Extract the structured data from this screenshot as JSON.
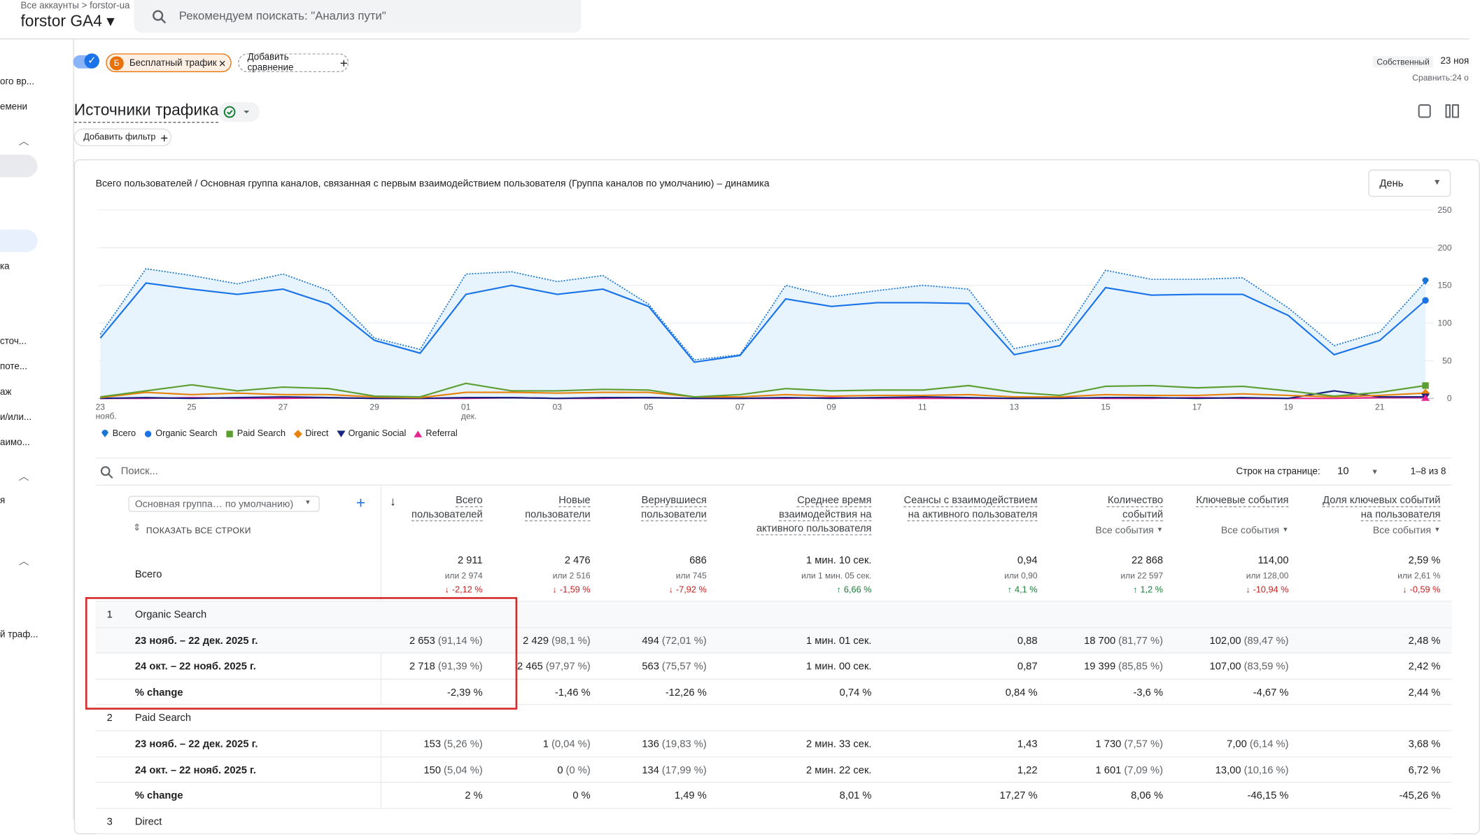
{
  "header": {
    "breadcrumb": [
      "Все аккаунты",
      "forstor-ua"
    ],
    "property": "forstor GA4",
    "search_placeholder": "Рекомендуем поискать: \"Анализ пути\""
  },
  "nav": {
    "items": [
      "ого вр...",
      "емени",
      "ка",
      "сточ...",
      "поте...",
      "аж",
      "и/или...",
      "аимо...",
      "я",
      "й траф..."
    ]
  },
  "toolbar": {
    "chip_letter": "Б",
    "chip": "Бесплатный трафик",
    "add_comparison": "Добавить сравнение",
    "date_label": "Собственный",
    "date": "23 ноя",
    "compare": "Сравнить:24 о"
  },
  "report": {
    "title": "Источники трафика",
    "add_filter": "Добавить фильтр",
    "granularity": "День"
  },
  "chart_data": {
    "type": "line",
    "title": "Всего пользователей / Основная группа каналов, связанная с первым взаимодействием пользователя (Группа каналов по умолчанию) – динамика",
    "categories": [
      "23\nнояб.",
      null,
      "25",
      null,
      "27",
      null,
      "29",
      null,
      "01\nдек.",
      null,
      "03",
      null,
      "05",
      null,
      "07",
      null,
      "09",
      null,
      "11",
      null,
      "13",
      null,
      "15",
      null,
      "17",
      null,
      "19",
      null,
      "21",
      null
    ],
    "ylim": [
      0,
      250
    ],
    "yticks": [
      0,
      50,
      100,
      150,
      200,
      250
    ],
    "grid": true,
    "series": [
      {
        "name": "Всего",
        "color": "#1976d2",
        "line_style": "dotted",
        "area": true,
        "marker": "pin",
        "values": [
          85,
          172,
          163,
          152,
          165,
          143,
          80,
          65,
          165,
          168,
          155,
          163,
          125,
          51,
          58,
          150,
          135,
          143,
          150,
          145,
          66,
          78,
          170,
          158,
          158,
          160,
          120,
          70,
          88,
          155
        ]
      },
      {
        "name": "Organic Search",
        "color": "#1a73e8",
        "line_style": "solid",
        "marker": "circle",
        "values": [
          80,
          153,
          145,
          138,
          145,
          125,
          77,
          60,
          138,
          150,
          138,
          145,
          122,
          48,
          57,
          132,
          122,
          127,
          127,
          126,
          58,
          70,
          147,
          137,
          138,
          138,
          110,
          58,
          77,
          130
        ]
      },
      {
        "name": "Paid Search",
        "color": "#5c9e31",
        "line_style": "solid",
        "marker": "square",
        "values": [
          2,
          10,
          18,
          10,
          15,
          13,
          3,
          2,
          20,
          10,
          10,
          12,
          11,
          2,
          5,
          13,
          10,
          11,
          11,
          17,
          8,
          4,
          16,
          17,
          14,
          16,
          10,
          3,
          8,
          17
        ]
      },
      {
        "name": "Direct",
        "color": "#e8820c",
        "line_style": "solid",
        "marker": "diamond",
        "values": [
          1,
          8,
          5,
          7,
          5,
          5,
          2,
          1,
          8,
          8,
          7,
          8,
          8,
          2,
          2,
          5,
          3,
          4,
          4,
          5,
          2,
          2,
          5,
          4,
          4,
          6,
          4,
          2,
          4,
          7
        ]
      },
      {
        "name": "Organic Social",
        "color": "#1a237e",
        "line_style": "solid",
        "marker": "triangle-down",
        "values": [
          0,
          1,
          0,
          1,
          2,
          1,
          0,
          0,
          1,
          1,
          0,
          1,
          1,
          0,
          0,
          1,
          0,
          1,
          2,
          1,
          0,
          0,
          1,
          1,
          0,
          1,
          0,
          10,
          2,
          2
        ]
      },
      {
        "name": "Referral",
        "color": "#e52592",
        "line_style": "solid",
        "marker": "triangle-up",
        "values": [
          0,
          0,
          1,
          0,
          0,
          1,
          0,
          0,
          0,
          1,
          0,
          0,
          1,
          0,
          0,
          0,
          1,
          0,
          0,
          0,
          0,
          1,
          0,
          0,
          1,
          0,
          0,
          0,
          1,
          1
        ]
      }
    ]
  },
  "table": {
    "search": "Поиск...",
    "rows_per_page_label": "Строк на странице:",
    "rows_per_page": "10",
    "range": "1–8 из 8",
    "dimension": "Основная группа… по умолчанию)",
    "show_all": "ПОКАЗАТЬ ВСЕ СТРОКИ",
    "columns": [
      {
        "title": "Всего пользователей"
      },
      {
        "title": "Новые пользователи"
      },
      {
        "title": "Вернувшиеся пользователи"
      },
      {
        "title": "Среднее время взаимодействия на активного пользователя"
      },
      {
        "title": "Сеансы с взаимодействием на активного пользователя"
      },
      {
        "title": "Количество событий",
        "filter": "Все события"
      },
      {
        "title": "Ключевые события",
        "filter": "Все события"
      },
      {
        "title": "Доля ключевых событий на пользователя",
        "filter": "Все события"
      }
    ],
    "totals": {
      "label": "Всего",
      "values": [
        {
          "value": "2 911",
          "compare": "или 2 974",
          "change": "-2,12 %"
        },
        {
          "value": "2 476",
          "compare": "или 2 516",
          "change": "-1,59 %"
        },
        {
          "value": "686",
          "compare": "или 745",
          "change": "-7,92 %"
        },
        {
          "value": "1 мин. 10 сек.",
          "compare": "или 1 мин. 05 сек.",
          "change": "6,66 %"
        },
        {
          "value": "0,94",
          "compare": "или 0,90",
          "change": "4,1 %"
        },
        {
          "value": "22 868",
          "compare": "или 22 597",
          "change": "1,2 %"
        },
        {
          "value": "114,00",
          "compare": "или 128,00",
          "change": "-10,94 %"
        },
        {
          "value": "2,59 %",
          "compare": "или 2,61 %",
          "change": "-0,59 %"
        }
      ]
    },
    "groups": [
      {
        "index": "1",
        "name": "Organic Search",
        "rows": [
          {
            "label": "23 нояб. – 22 дек. 2025 г.",
            "cells": [
              [
                "2 653",
                "(91,14 %)"
              ],
              [
                "2 429",
                "(98,1 %)"
              ],
              [
                "494",
                "(72,01 %)"
              ],
              [
                "1 мин. 01 сек."
              ],
              [
                "0,88"
              ],
              [
                "18 700",
                "(81,77 %)"
              ],
              [
                "102,00",
                "(89,47 %)"
              ],
              [
                "2,48 %"
              ]
            ]
          },
          {
            "label": "24 окт. – 22 нояб. 2025 г.",
            "cells": [
              [
                "2 718",
                "(91,39 %)"
              ],
              [
                "2 465",
                "(97,97 %)"
              ],
              [
                "563",
                "(75,57 %)"
              ],
              [
                "1 мин. 00 сек."
              ],
              [
                "0,87"
              ],
              [
                "19 399",
                "(85,85 %)"
              ],
              [
                "107,00",
                "(83,59 %)"
              ],
              [
                "2,42 %"
              ]
            ]
          },
          {
            "label": "% change",
            "cells": [
              [
                "-2,39 %"
              ],
              [
                "-1,46 %"
              ],
              [
                "-12,26 %"
              ],
              [
                "0,74 %"
              ],
              [
                "0,84 %"
              ],
              [
                "-3,6 %"
              ],
              [
                "-4,67 %"
              ],
              [
                "2,44 %"
              ]
            ]
          }
        ]
      },
      {
        "index": "2",
        "name": "Paid Search",
        "rows": [
          {
            "label": "23 нояб. – 22 дек. 2025 г.",
            "cells": [
              [
                "153",
                "(5,26 %)"
              ],
              [
                "1",
                "(0,04 %)"
              ],
              [
                "136",
                "(19,83 %)"
              ],
              [
                "2 мин. 33 сек."
              ],
              [
                "1,43"
              ],
              [
                "1 730",
                "(7,57 %)"
              ],
              [
                "7,00",
                "(6,14 %)"
              ],
              [
                "3,68 %"
              ]
            ]
          },
          {
            "label": "24 окт. – 22 нояб. 2025 г.",
            "cells": [
              [
                "150",
                "(5,04 %)"
              ],
              [
                "0",
                "(0 %)"
              ],
              [
                "134",
                "(17,99 %)"
              ],
              [
                "2 мин. 22 сек."
              ],
              [
                "1,22"
              ],
              [
                "1 601",
                "(7,09 %)"
              ],
              [
                "13,00",
                "(10,16 %)"
              ],
              [
                "6,72 %"
              ]
            ]
          },
          {
            "label": "% change",
            "cells": [
              [
                "2 %"
              ],
              [
                "0 %"
              ],
              [
                "1,49 %"
              ],
              [
                "8,01 %"
              ],
              [
                "17,27 %"
              ],
              [
                "8,06 %"
              ],
              [
                "-46,15 %"
              ],
              [
                "-45,26 %"
              ]
            ]
          }
        ]
      },
      {
        "index": "3",
        "name": "Direct",
        "rows": []
      }
    ]
  }
}
